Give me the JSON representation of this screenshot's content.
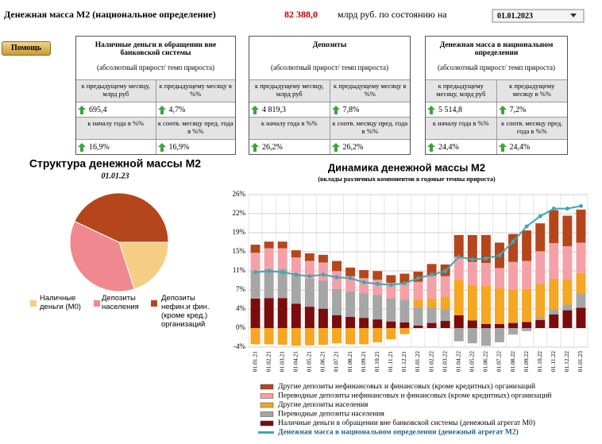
{
  "header": {
    "title": "Денежная масса М2 (национальное определение)",
    "value": "82 388,0",
    "unit": "млрд руб. по состоянию на",
    "date": "01.01.2023"
  },
  "help": "Помощь",
  "cards": [
    {
      "title": "Наличные деньги в обращении вне банковской системы",
      "subtitle": "(абсолютный прирост/ темп прироста)",
      "rows": [
        [
          "к предыдущему месяцу, млрд руб",
          "к предыдущему месяцу в %%"
        ],
        [
          "695,4",
          "4,7%"
        ],
        [
          "к началу года в %%",
          "к соотв. месяцу пред. года в %%"
        ],
        [
          "16,9%",
          "16,9%"
        ]
      ]
    },
    {
      "title": "Депозиты",
      "subtitle": "(абсолютный прирост/ темп прироста)",
      "rows": [
        [
          "к предыдущему месяцу, млрд руб",
          "к предыдущему месяцу в %%"
        ],
        [
          "4 819,3",
          "7,8%"
        ],
        [
          "к началу года в %%",
          "к соотв. месяцу пред. года в %%"
        ],
        [
          "26,2%",
          "26,2%"
        ]
      ]
    },
    {
      "title": "Денежная масса в национальном определении",
      "subtitle": "(абсолютный прирост/ темп прироста)",
      "rows": [
        [
          "к предыдущему месяцу, млрд руб",
          "к предыдущему месяцу в %%"
        ],
        [
          "5 514,8",
          "7,2%"
        ],
        [
          "к началу года в %%",
          "к соотв. месяцу пред. года в %%"
        ],
        [
          "24,4%",
          "24,4%"
        ]
      ]
    }
  ],
  "chart_data": [
    {
      "type": "pie",
      "title": "Структура денежной массы М2",
      "subtitle": "01.01.23",
      "categories": [
        "Наличные деньги (М0)",
        "Депозиты населения",
        "Депозиты нефин.и фин. (кроме кред.) организаций"
      ],
      "values": [
        20,
        37,
        43
      ],
      "colors": [
        "#f5cd84",
        "#f0888f",
        "#b5461c"
      ]
    },
    {
      "type": "bar",
      "stacked": true,
      "title": "Динамика денежной массы М2",
      "subtitle": "(вклады различных компонентов в годовые темпы прироста)",
      "categories": [
        "01.01.21",
        "01.02.21",
        "01.03.21",
        "01.04.21",
        "01.05.21",
        "01.06.21",
        "01.07.21",
        "01.08.21",
        "01.09.21",
        "01.10.21",
        "01.11.21",
        "01.12.21",
        "01.01.22",
        "01.02.22",
        "01.03.22",
        "01.04.22",
        "01.05.22",
        "01.06.22",
        "01.07.22",
        "01.08.22",
        "01.09.22",
        "01.10.22",
        "01.11.22",
        "01.12.22",
        "01.01.23"
      ],
      "ylim": [
        -3.75,
        26.25
      ],
      "yticks": [
        {
          "value": -3.75,
          "label": "-4%"
        },
        {
          "value": 0,
          "label": "0%"
        },
        {
          "value": 3.75,
          "label": "4%"
        },
        {
          "value": 7.5,
          "label": "7%"
        },
        {
          "value": 11.25,
          "label": "11%"
        },
        {
          "value": 15,
          "label": "15%"
        },
        {
          "value": 18.75,
          "label": "19%"
        },
        {
          "value": 22.5,
          "label": "22%"
        },
        {
          "value": 26.25,
          "label": "26%"
        }
      ],
      "grid": true,
      "series": [
        {
          "name": "Наличные деньги в обращении вне банковской системы (денежный агрегат М0)",
          "color": "#7a0c0c",
          "values": [
            5.8,
            5.9,
            5.9,
            4.8,
            4.2,
            3.8,
            2.5,
            2.2,
            2,
            1.7,
            1.3,
            1.1,
            0.5,
            1,
            1.4,
            2.5,
            1.5,
            0.8,
            0.8,
            1,
            1.2,
            1.6,
            2.7,
            3.5,
            4
          ]
        },
        {
          "name": "Переводные депозиты населения",
          "color": "#a6a6a6",
          "values": [
            5.5,
            5.8,
            5.8,
            5.6,
            5.5,
            5.5,
            5.2,
            5,
            4.8,
            4.8,
            4.6,
            4.5,
            3.6,
            3,
            2.3,
            -2.6,
            -3,
            -3.5,
            -2.8,
            -1.3,
            -0.6,
            0.5,
            1,
            1.1,
            2.8
          ]
        },
        {
          "name": "Другие депозиты населения",
          "color": "#f5a623",
          "values": [
            -3.2,
            -3.2,
            -3.3,
            -3.5,
            -3.4,
            -3.3,
            -3,
            -3.2,
            -3.2,
            -2.8,
            -2.2,
            -1.2,
            1.5,
            1.8,
            2.5,
            7,
            7,
            7.5,
            7,
            6.5,
            6.5,
            6.5,
            6,
            5,
            4
          ]
        },
        {
          "name": "Переводные депозиты нефинансовых и финансовых (кроме кредитных)  организаций",
          "color": "#f4a0a8",
          "values": [
            3.5,
            4,
            4,
            3.5,
            3.5,
            3.6,
            3.5,
            3,
            3,
            3,
            3,
            3.3,
            3.5,
            4.5,
            4,
            4.5,
            4.5,
            4.5,
            4,
            5.5,
            5.5,
            6.5,
            7,
            6.5,
            6
          ]
        },
        {
          "name": "Другие депозиты нефинансовых и финансовых (кроме кредитных)  организаций",
          "color": "#b5461c",
          "values": [
            1.6,
            1.3,
            1.3,
            1.4,
            1.5,
            1.5,
            2,
            1.7,
            1.6,
            1.7,
            1.5,
            1.8,
            2,
            2.3,
            2.3,
            4.3,
            5.3,
            5.5,
            5,
            5.5,
            6,
            5.5,
            6.5,
            6,
            6.5
          ]
        },
        {
          "name": "Денежная масса в национальном  определении  (денежный агрегат  М2)",
          "color": "#3fa7b5",
          "type": "line",
          "values": [
            11,
            11.2,
            11,
            10.5,
            10.2,
            10.5,
            10,
            9.8,
            9,
            8.7,
            8.5,
            8.8,
            9.8,
            10.5,
            11.2,
            14,
            13.5,
            13.7,
            14.3,
            17,
            20,
            22,
            23.5,
            23.5,
            24
          ]
        }
      ]
    }
  ]
}
